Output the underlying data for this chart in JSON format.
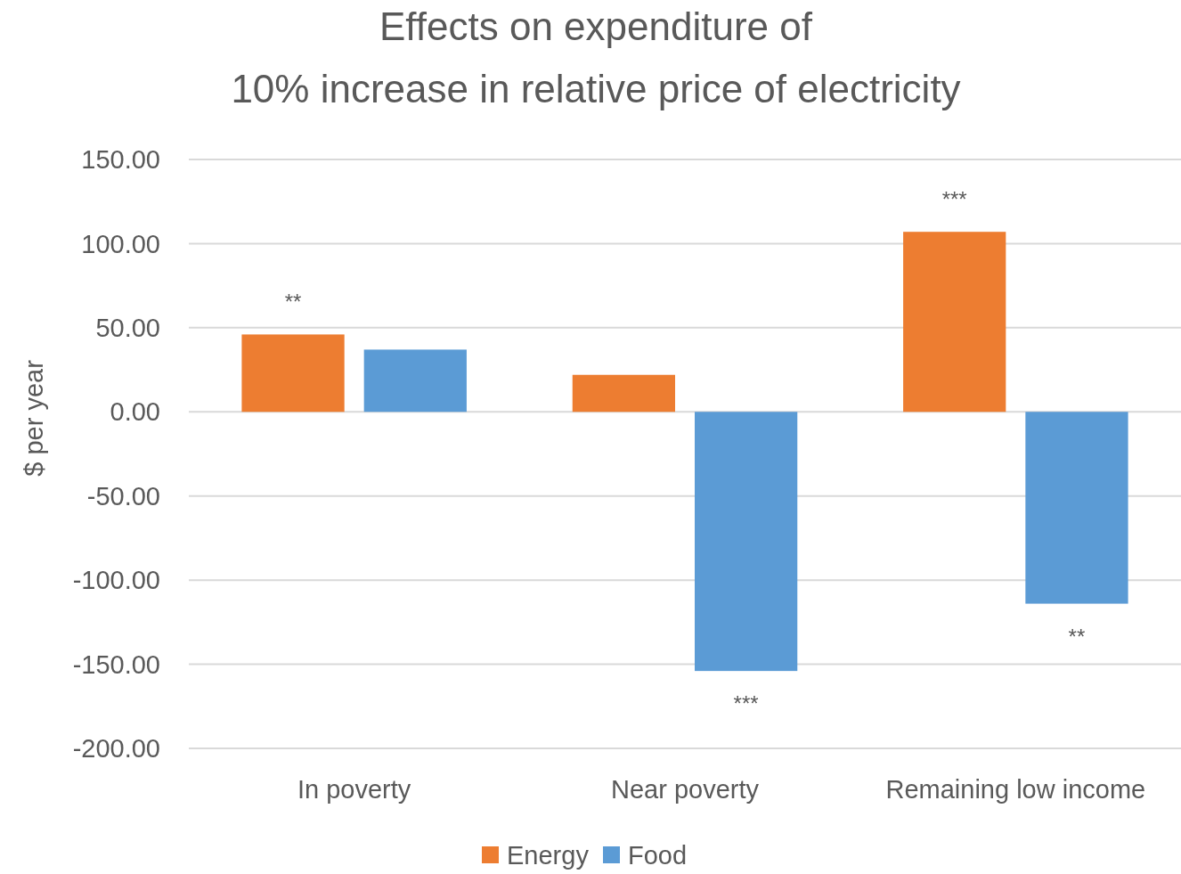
{
  "chart_data": {
    "type": "bar",
    "title": "Effects on expenditure of\n10% increase in relative price of electricity",
    "ylabel": "$ per year",
    "categories": [
      "In poverty",
      "Near poverty",
      "Remaining low income"
    ],
    "series": [
      {
        "name": "Energy",
        "color": "#ed7d31",
        "values": [
          46,
          22,
          107
        ]
      },
      {
        "name": "Food",
        "color": "#5b9bd5",
        "values": [
          37,
          -154,
          -114
        ]
      }
    ],
    "ylim": [
      -200,
      150
    ],
    "yticks": [
      {
        "value": -200,
        "label": "-200.00"
      },
      {
        "value": -150,
        "label": "-150.00"
      },
      {
        "value": -100,
        "label": "-100.00"
      },
      {
        "value": -50,
        "label": "-50.00"
      },
      {
        "value": 0,
        "label": "0.00"
      },
      {
        "value": 50,
        "label": "50.00"
      },
      {
        "value": 100,
        "label": "100.00"
      },
      {
        "value": 150,
        "label": "150.00"
      }
    ],
    "grid": "y",
    "legend": "bottom",
    "annotations": [
      "**",
      "***",
      "***",
      "**"
    ]
  }
}
